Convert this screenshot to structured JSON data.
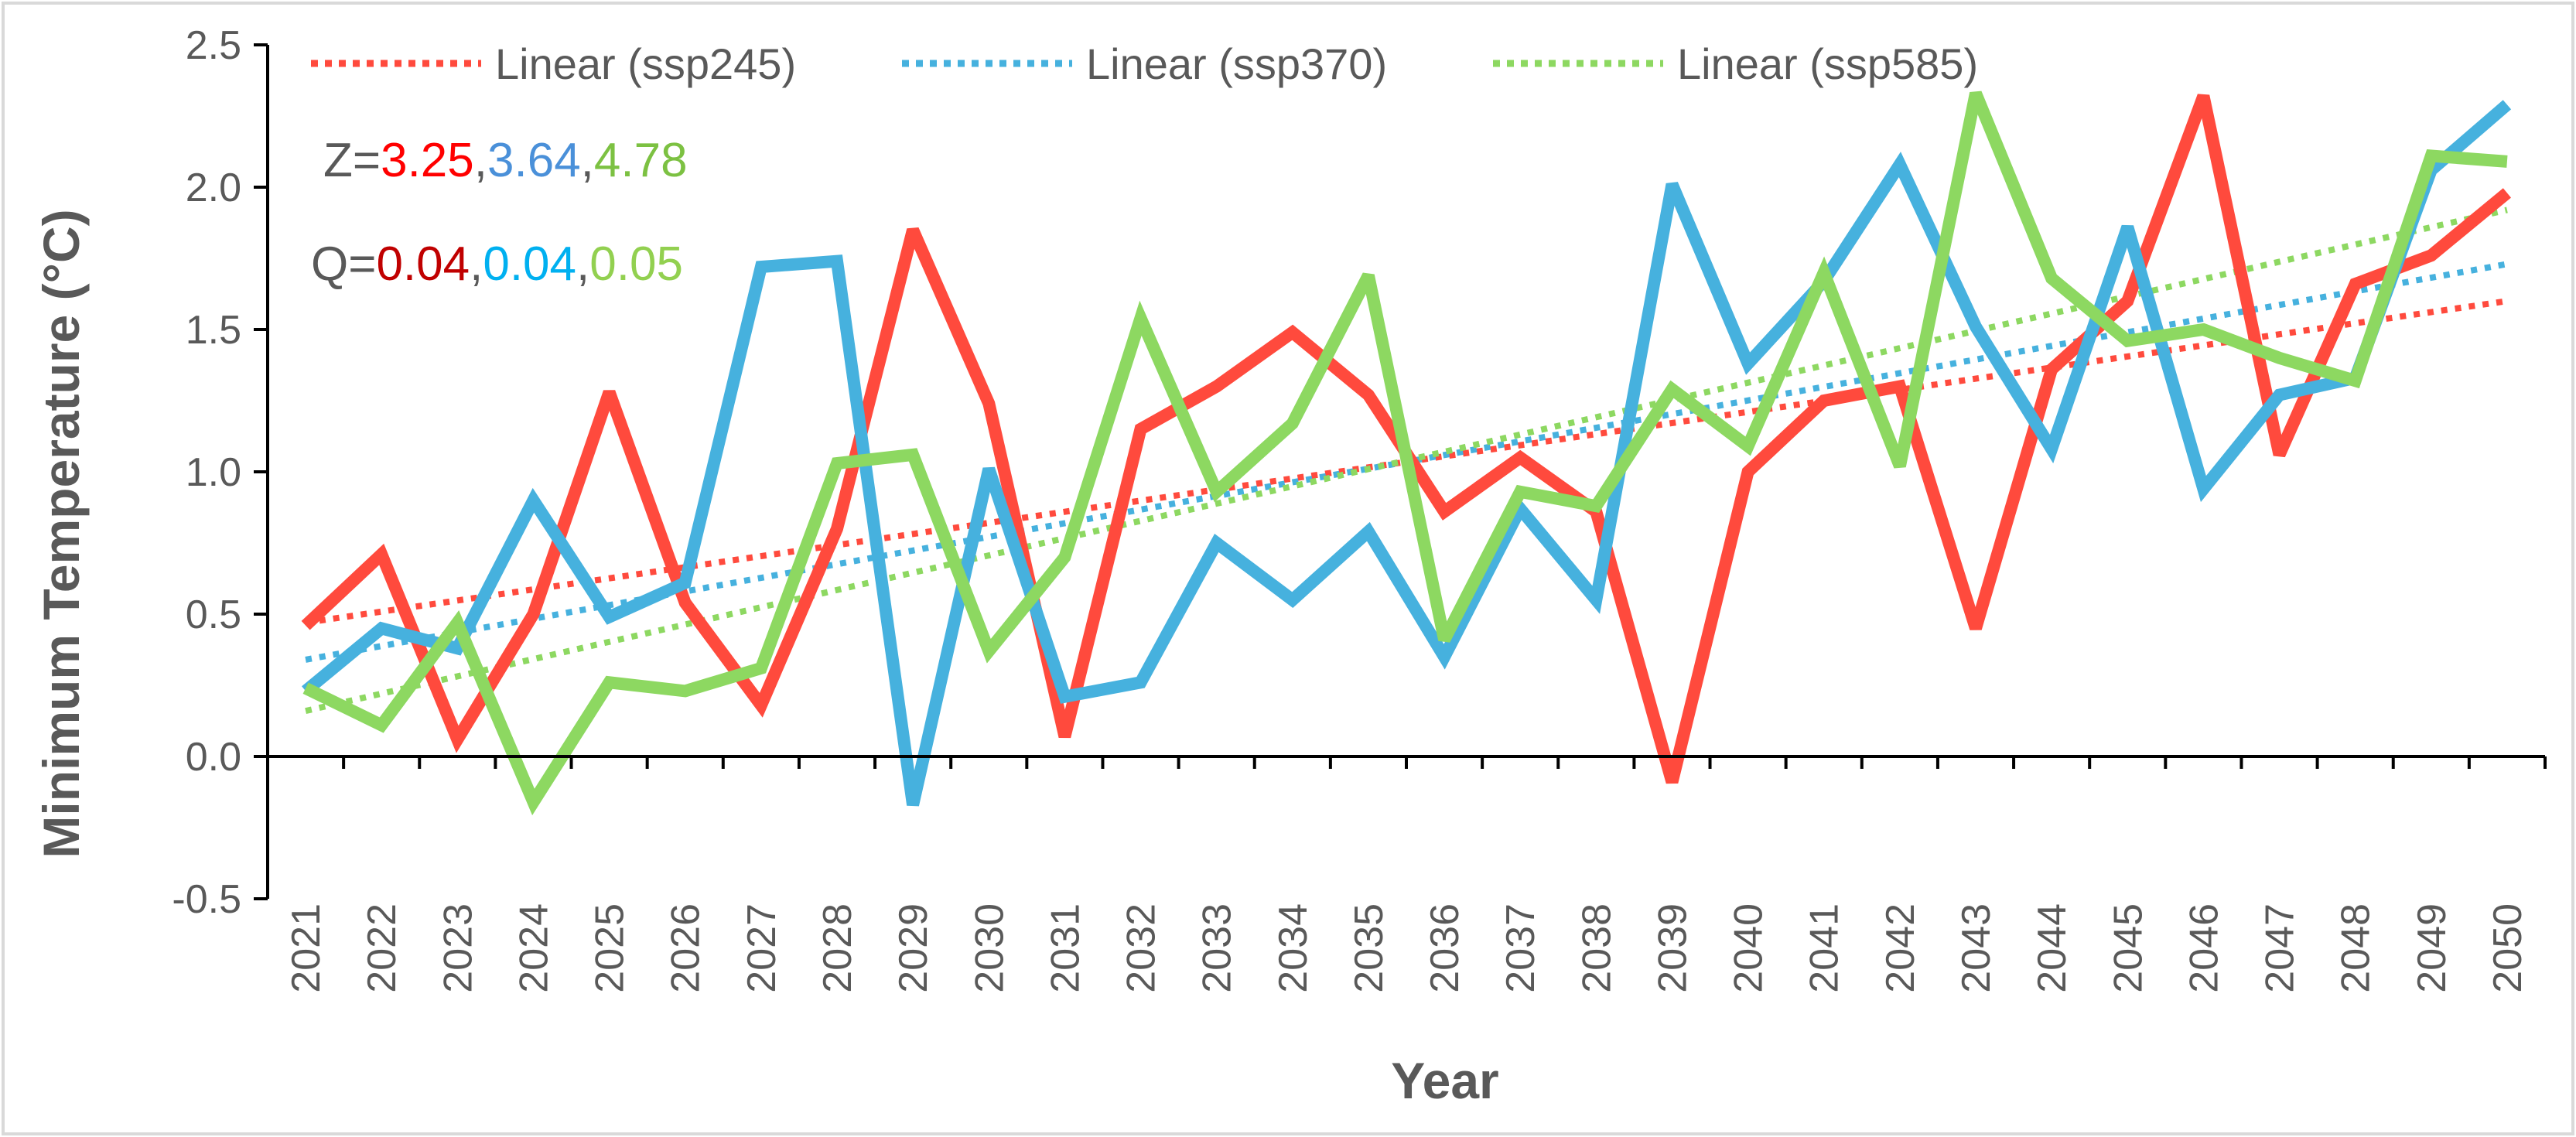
{
  "chart_data": {
    "type": "line",
    "title": "",
    "xlabel": "Year",
    "ylabel": "Minimum Temperature (°C)",
    "ylim": [
      -0.5,
      2.5
    ],
    "yticks": [
      "2.5",
      "2.0",
      "1.5",
      "1.0",
      "0.5",
      "0.0",
      "-0.5"
    ],
    "categories": [
      "2021",
      "2022",
      "2023",
      "2024",
      "2025",
      "2026",
      "2027",
      "2028",
      "2029",
      "2030",
      "2031",
      "2032",
      "2033",
      "2034",
      "2035",
      "2036",
      "2037",
      "2038",
      "2039",
      "2040",
      "2041",
      "2042",
      "2043",
      "2044",
      "2045",
      "2046",
      "2047",
      "2048",
      "2049",
      "2050"
    ],
    "series": [
      {
        "name": "ssp245",
        "color": "#FF4A3D",
        "values": [
          0.46,
          0.71,
          0.06,
          0.5,
          1.28,
          0.54,
          0.18,
          0.8,
          1.85,
          1.24,
          0.07,
          1.15,
          1.3,
          1.49,
          1.27,
          0.86,
          1.05,
          0.86,
          -0.09,
          1.0,
          1.25,
          1.3,
          0.45,
          1.36,
          1.6,
          2.32,
          1.06,
          1.66,
          1.76,
          1.98
        ]
      },
      {
        "name": "ssp370",
        "color": "#46B1DE",
        "values": [
          0.23,
          0.45,
          0.38,
          0.9,
          0.49,
          0.61,
          1.72,
          1.74,
          -0.17,
          1.01,
          0.21,
          0.26,
          0.75,
          0.55,
          0.79,
          0.35,
          0.87,
          0.55,
          2.01,
          1.38,
          1.67,
          2.08,
          1.51,
          1.08,
          1.86,
          0.94,
          1.27,
          1.33,
          2.06,
          2.29
        ]
      },
      {
        "name": "ssp585",
        "color": "#8DD861",
        "values": [
          0.24,
          0.11,
          0.47,
          -0.16,
          0.26,
          0.23,
          0.31,
          1.03,
          1.06,
          0.37,
          0.7,
          1.54,
          0.93,
          1.17,
          1.69,
          0.41,
          0.93,
          0.88,
          1.29,
          1.09,
          1.7,
          1.02,
          2.33,
          1.68,
          1.46,
          1.5,
          1.4,
          1.32,
          2.11,
          2.09
        ]
      }
    ],
    "trendlines": [
      {
        "name": "Linear (ssp245)",
        "color": "#FF4A3D",
        "start": 0.47,
        "end": 1.6
      },
      {
        "name": "Linear (ssp370)",
        "color": "#46B1DE",
        "start": 0.34,
        "end": 1.73
      },
      {
        "name": "Linear (ssp585)",
        "color": "#8DD861",
        "start": 0.16,
        "end": 1.92
      }
    ],
    "legend_position": "top",
    "annotations": {
      "z": {
        "prefix": "Z=",
        "sep": ",",
        "values": [
          "3.25",
          "3.64",
          "4.78"
        ],
        "colors": [
          "#FF0000",
          "#4A90D9",
          "#7CC142"
        ]
      },
      "q": {
        "prefix": "Q=",
        "sep": ",",
        "values": [
          "0.04",
          "0.04",
          "0.05"
        ],
        "colors": [
          "#C00000",
          "#00B0F0",
          "#92D050"
        ]
      }
    }
  }
}
